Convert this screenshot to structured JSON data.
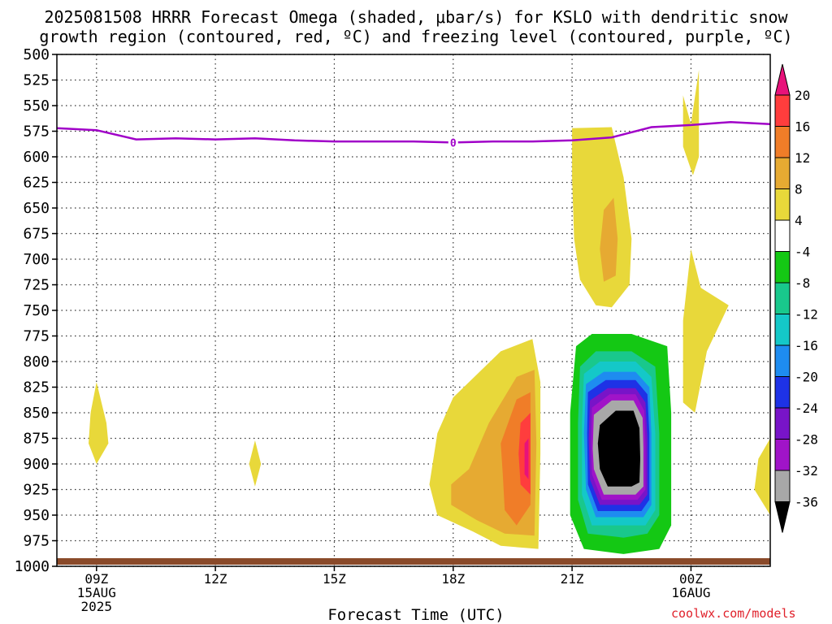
{
  "title_line1": "2025081508 HRRR Forecast Omega (shaded, μbar/s) for KSLO with dendritic snow",
  "title_line2": "growth region (contoured, red, ºC) and freezing level (contoured, purple, ºC)",
  "credit": "coolwx.com/models",
  "chart_data": {
    "type": "contour",
    "xlabel": "Forecast Time (UTC)",
    "ylabel": "",
    "x_range_hours": [
      8,
      26
    ],
    "y_range": [
      500,
      1000
    ],
    "y_ticks": [
      "500",
      "525",
      "550",
      "575",
      "600",
      "625",
      "650",
      "675",
      "700",
      "725",
      "750",
      "775",
      "800",
      "825",
      "850",
      "875",
      "900",
      "925",
      "950",
      "975",
      "1000"
    ],
    "x_ticks": [
      {
        "hour": 9,
        "lines": [
          "09Z",
          "15AUG",
          "2025"
        ]
      },
      {
        "hour": 12,
        "lines": [
          "12Z"
        ]
      },
      {
        "hour": 15,
        "lines": [
          "15Z"
        ]
      },
      {
        "hour": 18,
        "lines": [
          "18Z"
        ]
      },
      {
        "hour": 21,
        "lines": [
          "21Z"
        ]
      },
      {
        "hour": 24,
        "lines": [
          "00Z",
          "16AUG"
        ]
      }
    ],
    "freezing_level": {
      "label": "0",
      "color": "#a000c8",
      "hours": [
        8,
        9,
        10,
        11,
        12,
        13,
        14,
        15,
        16,
        17,
        18,
        19,
        20,
        21,
        22,
        23,
        24,
        25,
        26
      ],
      "pressure": [
        572,
        574,
        583,
        582,
        583,
        582,
        584,
        585,
        585,
        585,
        586,
        585,
        585,
        584,
        581,
        571,
        569,
        566,
        568
      ]
    },
    "colorbar": {
      "levels": [
        "20",
        "16",
        "12",
        "8",
        "4",
        "-4",
        "-8",
        "-12",
        "-16",
        "-20",
        "-24",
        "-28",
        "-32",
        "-36"
      ],
      "colors": [
        "#e8127a",
        "#ff3d3d",
        "#f07d28",
        "#e6aa32",
        "#e8d83a",
        "#ffffff",
        "#14c814",
        "#19c88c",
        "#14c8c8",
        "#1e8cf0",
        "#1e32e6",
        "#7814c8",
        "#a014c8",
        "#a8a8a8",
        "#000000"
      ]
    },
    "regions": [
      {
        "level": "4",
        "color": "#e8d83a",
        "points": [
          [
            9.0,
            820
          ],
          [
            9.25,
            860
          ],
          [
            9.3,
            880
          ],
          [
            9.0,
            900
          ],
          [
            8.8,
            880
          ],
          [
            8.85,
            850
          ]
        ]
      },
      {
        "level": "4",
        "color": "#e8d83a",
        "points": [
          [
            13.0,
            877
          ],
          [
            13.15,
            900
          ],
          [
            13.0,
            922
          ],
          [
            12.85,
            900
          ]
        ]
      },
      {
        "level": "4",
        "color": "#e8d83a",
        "points": [
          [
            18.0,
            835
          ],
          [
            19.2,
            790
          ],
          [
            20.0,
            778
          ],
          [
            20.2,
            820
          ],
          [
            20.2,
            890
          ],
          [
            20.15,
            983
          ],
          [
            19.2,
            980
          ],
          [
            18.5,
            966
          ],
          [
            17.6,
            950
          ],
          [
            17.4,
            920
          ],
          [
            17.6,
            870
          ]
        ]
      },
      {
        "level": "8",
        "color": "#e6aa32",
        "points": [
          [
            18.4,
            905
          ],
          [
            18.9,
            860
          ],
          [
            19.6,
            815
          ],
          [
            20.05,
            808
          ],
          [
            20.1,
            880
          ],
          [
            20.05,
            970
          ],
          [
            19.3,
            968
          ],
          [
            18.6,
            955
          ],
          [
            17.95,
            940
          ],
          [
            17.95,
            920
          ]
        ]
      },
      {
        "level": "12",
        "color": "#f07d28",
        "points": [
          [
            19.2,
            880
          ],
          [
            19.6,
            837
          ],
          [
            19.95,
            830
          ],
          [
            19.95,
            940
          ],
          [
            19.6,
            960
          ],
          [
            19.3,
            945
          ],
          [
            19.25,
            910
          ]
        ]
      },
      {
        "level": "16",
        "color": "#ff3d3d",
        "points": [
          [
            19.7,
            860
          ],
          [
            19.95,
            850
          ],
          [
            19.95,
            930
          ],
          [
            19.7,
            920
          ],
          [
            19.65,
            890
          ]
        ]
      },
      {
        "level": "20",
        "color": "#e8127a",
        "points": [
          [
            19.8,
            880
          ],
          [
            19.9,
            875
          ],
          [
            19.9,
            915
          ],
          [
            19.8,
            910
          ]
        ]
      },
      {
        "level": "4",
        "color": "#e8d83a",
        "points": [
          [
            21.0,
            572
          ],
          [
            22.0,
            571
          ],
          [
            22.3,
            620
          ],
          [
            22.5,
            680
          ],
          [
            22.45,
            725
          ],
          [
            22.0,
            747
          ],
          [
            21.6,
            745
          ],
          [
            21.2,
            720
          ],
          [
            21.05,
            680
          ],
          [
            21.0,
            620
          ]
        ]
      },
      {
        "level": "8",
        "color": "#e6aa32",
        "points": [
          [
            21.8,
            652
          ],
          [
            22.05,
            640
          ],
          [
            22.15,
            680
          ],
          [
            22.1,
            716
          ],
          [
            21.8,
            722
          ],
          [
            21.7,
            690
          ]
        ]
      },
      {
        "level": "4",
        "color": "#e8d83a",
        "points": [
          [
            24.0,
            568
          ],
          [
            24.2,
            515
          ],
          [
            24.2,
            600
          ],
          [
            24.05,
            618
          ],
          [
            23.8,
            590
          ],
          [
            23.8,
            540
          ]
        ]
      },
      {
        "level": "4",
        "color": "#e8d83a",
        "points": [
          [
            24.0,
            690
          ],
          [
            24.25,
            728
          ],
          [
            24.95,
            745
          ],
          [
            24.4,
            790
          ],
          [
            24.1,
            850
          ],
          [
            23.8,
            840
          ],
          [
            23.8,
            760
          ]
        ]
      },
      {
        "level": "4",
        "color": "#e8d83a",
        "points": [
          [
            26.0,
            875
          ],
          [
            26.0,
            950
          ],
          [
            25.6,
            925
          ],
          [
            25.7,
            895
          ]
        ]
      },
      {
        "level": "-4",
        "color": "#14c814",
        "points": [
          [
            21.1,
            785
          ],
          [
            21.5,
            773
          ],
          [
            22.5,
            773
          ],
          [
            23.4,
            785
          ],
          [
            23.5,
            850
          ],
          [
            23.5,
            960
          ],
          [
            23.2,
            983
          ],
          [
            22.3,
            988
          ],
          [
            21.3,
            983
          ],
          [
            20.95,
            950
          ],
          [
            20.95,
            850
          ]
        ]
      },
      {
        "level": "-8",
        "color": "#19c88c",
        "points": [
          [
            21.2,
            805
          ],
          [
            21.6,
            790
          ],
          [
            22.5,
            790
          ],
          [
            23.1,
            805
          ],
          [
            23.2,
            870
          ],
          [
            23.2,
            950
          ],
          [
            22.9,
            968
          ],
          [
            22.3,
            972
          ],
          [
            21.4,
            968
          ],
          [
            21.15,
            935
          ],
          [
            21.15,
            860
          ]
        ]
      },
      {
        "level": "-12",
        "color": "#14c8c8",
        "points": [
          [
            21.3,
            812
          ],
          [
            21.7,
            800
          ],
          [
            22.6,
            800
          ],
          [
            23.0,
            815
          ],
          [
            23.1,
            870
          ],
          [
            23.1,
            945
          ],
          [
            22.85,
            960
          ],
          [
            21.5,
            960
          ],
          [
            21.25,
            930
          ],
          [
            21.25,
            860
          ]
        ]
      },
      {
        "level": "-16",
        "color": "#1e8cf0",
        "points": [
          [
            21.35,
            822
          ],
          [
            21.8,
            810
          ],
          [
            22.6,
            810
          ],
          [
            22.95,
            825
          ],
          [
            23.0,
            870
          ],
          [
            23.0,
            940
          ],
          [
            22.8,
            952
          ],
          [
            21.6,
            952
          ],
          [
            21.35,
            925
          ],
          [
            21.3,
            870
          ]
        ]
      },
      {
        "level": "-20",
        "color": "#1e32e6",
        "points": [
          [
            21.4,
            830
          ],
          [
            21.85,
            818
          ],
          [
            22.6,
            818
          ],
          [
            22.9,
            832
          ],
          [
            22.95,
            870
          ],
          [
            22.95,
            935
          ],
          [
            22.75,
            946
          ],
          [
            21.65,
            946
          ],
          [
            21.4,
            920
          ],
          [
            21.38,
            870
          ]
        ]
      },
      {
        "level": "-24",
        "color": "#7814c8",
        "points": [
          [
            21.45,
            838
          ],
          [
            21.9,
            826
          ],
          [
            22.6,
            826
          ],
          [
            22.85,
            840
          ],
          [
            22.9,
            875
          ],
          [
            22.9,
            930
          ],
          [
            22.7,
            940
          ],
          [
            21.7,
            940
          ],
          [
            21.45,
            915
          ],
          [
            21.42,
            875
          ]
        ]
      },
      {
        "level": "-28",
        "color": "#a014c8",
        "points": [
          [
            21.5,
            845
          ],
          [
            21.95,
            832
          ],
          [
            22.6,
            832
          ],
          [
            22.82,
            848
          ],
          [
            22.85,
            880
          ],
          [
            22.85,
            925
          ],
          [
            22.65,
            935
          ],
          [
            21.75,
            935
          ],
          [
            21.5,
            910
          ],
          [
            21.48,
            880
          ]
        ]
      },
      {
        "level": "-32",
        "color": "#a8a8a8",
        "points": [
          [
            21.55,
            852
          ],
          [
            22.0,
            838
          ],
          [
            22.55,
            838
          ],
          [
            22.78,
            855
          ],
          [
            22.8,
            885
          ],
          [
            22.8,
            922
          ],
          [
            22.6,
            930
          ],
          [
            21.8,
            930
          ],
          [
            21.55,
            905
          ],
          [
            21.52,
            885
          ]
        ]
      },
      {
        "level": "-36",
        "color": "#000000",
        "points": [
          [
            21.7,
            862
          ],
          [
            22.1,
            848
          ],
          [
            22.55,
            848
          ],
          [
            22.7,
            865
          ],
          [
            22.72,
            895
          ],
          [
            22.7,
            918
          ],
          [
            22.5,
            922
          ],
          [
            21.9,
            922
          ],
          [
            21.7,
            905
          ],
          [
            21.65,
            880
          ]
        ]
      }
    ]
  }
}
